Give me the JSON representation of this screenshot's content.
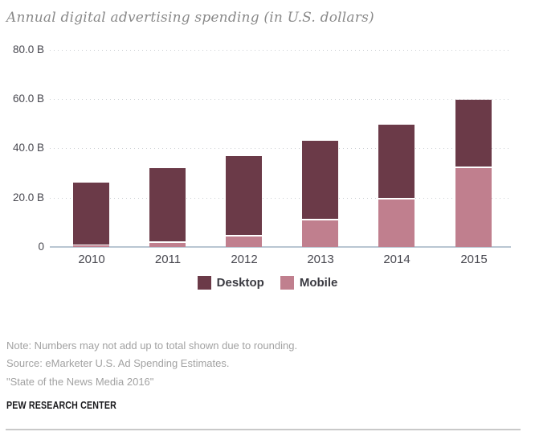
{
  "page": {
    "title": "Annual digital advertising spending (in U.S. dollars)"
  },
  "chart_data": {
    "type": "bar",
    "stacked": true,
    "title": "Annual digital advertising spending (in U.S. dollars)",
    "categories": [
      "2010",
      "2011",
      "2012",
      "2013",
      "2014",
      "2015"
    ],
    "series": [
      {
        "name": "Mobile",
        "color": "#c07f8e",
        "values": [
          0.6,
          1.5,
          4.4,
          10.7,
          19.2,
          31.9
        ]
      },
      {
        "name": "Desktop",
        "color": "#6b3a48",
        "values": [
          25.4,
          30.5,
          32.4,
          32.4,
          30.3,
          27.7
        ]
      }
    ],
    "stack_order_bottom_to_top": [
      "Mobile",
      "Desktop"
    ],
    "totals": [
      26.0,
      32.0,
      36.8,
      43.1,
      49.5,
      59.6
    ],
    "ylim": [
      0,
      80
    ],
    "yticks": [
      {
        "value": 0,
        "label": "0"
      },
      {
        "value": 20,
        "label": "20.0 B"
      },
      {
        "value": 40,
        "label": "40.0 B"
      },
      {
        "value": 60,
        "label": "60.0 B"
      },
      {
        "value": 80,
        "label": "80.0 B"
      }
    ],
    "grid": "horizontal-dotted",
    "legend_position": "bottom",
    "legend_order": [
      "Desktop",
      "Mobile"
    ]
  },
  "footer": {
    "note": "Note: Numbers may not add up to total shown due to rounding.",
    "source": "Source: eMarketer U.S. Ad Spending Estimates.",
    "report": "\"State of the News Media 2016\"",
    "brand": "PEW RESEARCH CENTER"
  },
  "colors": {
    "desktop": "#6b3a48",
    "mobile": "#c07f8e",
    "segment_divider": "#ffffff",
    "baseline": "#b9c6d2",
    "grid_dot": "#c9cdd1",
    "title_text": "#8a8a8a",
    "axis_text": "#47474f",
    "note_text": "#a2a2a2",
    "brand_text": "#19191c"
  }
}
